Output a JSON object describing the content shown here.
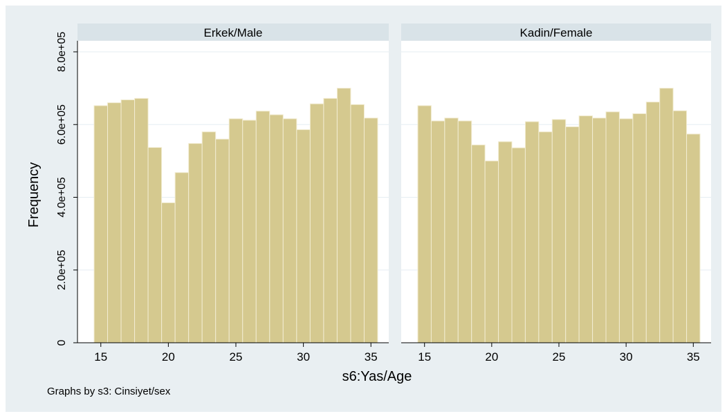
{
  "chart_data": [
    {
      "type": "bar",
      "panel_title": "Erkek/Male",
      "x": [
        15,
        16,
        17,
        18,
        19,
        20,
        21,
        22,
        23,
        24,
        25,
        26,
        27,
        28,
        29,
        30,
        31,
        32,
        33,
        34,
        35
      ],
      "values": [
        652000,
        660000,
        668000,
        672000,
        537000,
        385000,
        468000,
        548000,
        580000,
        560000,
        616000,
        612000,
        637000,
        627000,
        616000,
        586000,
        657000,
        672000,
        700000,
        655000,
        618000
      ],
      "xticks": [
        15,
        20,
        25,
        30,
        35
      ],
      "yticks": [
        0,
        200000,
        400000,
        600000,
        800000
      ],
      "ylim": [
        0,
        800000
      ],
      "grid": true,
      "color": "#d5c98f"
    },
    {
      "type": "bar",
      "panel_title": "Kadin/Female",
      "x": [
        15,
        16,
        17,
        18,
        19,
        20,
        21,
        22,
        23,
        24,
        25,
        26,
        27,
        28,
        29,
        30,
        31,
        32,
        33,
        34,
        35
      ],
      "values": [
        652000,
        610000,
        618000,
        610000,
        544000,
        500000,
        553000,
        536000,
        608000,
        580000,
        614000,
        594000,
        624000,
        618000,
        635000,
        616000,
        630000,
        662000,
        700000,
        638000,
        574000
      ],
      "xticks": [
        15,
        20,
        25,
        30,
        35
      ],
      "yticks": [
        0,
        200000,
        400000,
        600000,
        800000
      ],
      "ylim": [
        0,
        800000
      ],
      "grid": true,
      "color": "#d5c98f"
    }
  ],
  "labels": {
    "ylabel": "Frequency",
    "xlabel": "s6:Yas/Age",
    "note": "Graphs by s3: Cinsiyet/sex",
    "ytick_labels": [
      "0",
      "2.0e+05",
      "4.0e+05",
      "6.0e+05",
      "8.0e+05"
    ],
    "xtick_labels": [
      "15",
      "20",
      "25",
      "30",
      "35"
    ]
  },
  "colors": {
    "outer_background": "#e9eff2",
    "plot_background": "#ffffff",
    "strip_background": "#d9e3e8",
    "bar_fill": "#d5c98f",
    "bar_stroke": "#f2ecd2",
    "grid": "#e6eef2"
  }
}
